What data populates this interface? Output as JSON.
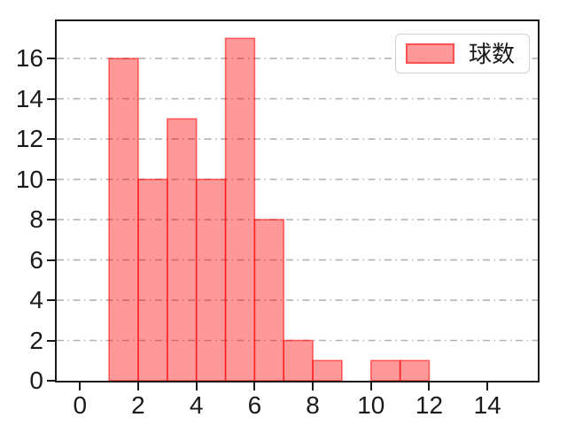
{
  "chart_data": {
    "type": "bar",
    "subtype": "histogram",
    "title": "",
    "xlabel": "",
    "ylabel": "",
    "legend": {
      "label": "球数",
      "position": "upper-right"
    },
    "bin_edges": [
      1,
      2,
      3,
      4,
      5,
      6,
      7,
      8,
      9,
      10,
      11,
      12
    ],
    "counts": [
      16,
      10,
      13,
      10,
      17,
      8,
      2,
      1,
      0,
      1,
      1
    ],
    "xticks": [
      0,
      2,
      4,
      6,
      8,
      10,
      12,
      14
    ],
    "yticks": [
      0,
      2,
      4,
      6,
      8,
      10,
      12,
      14,
      16
    ],
    "xlim": [
      -0.8,
      15.73
    ],
    "ylim": [
      0,
      17.85
    ],
    "grid": {
      "axis": "y",
      "style": "dashdot",
      "color": "#b3b3b3"
    },
    "colors": {
      "bar_fill": "rgba(255,0,0,0.40)",
      "bar_edge": "rgba(255,0,0,0.55)",
      "bar_fill_hex": "#ff9999",
      "bar_edge_hex": "#fa5a5a",
      "axis": "#1a1a1a",
      "legend_border": "#d2d2d2"
    }
  }
}
